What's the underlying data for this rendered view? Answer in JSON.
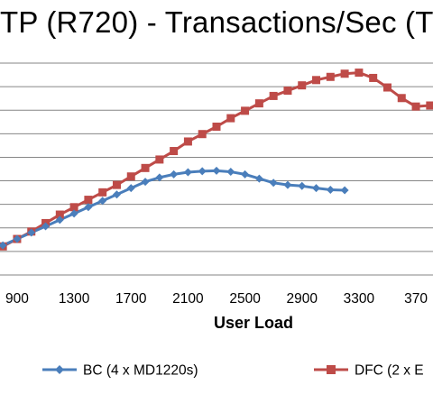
{
  "chart_data": {
    "type": "line",
    "title": "TP (R720) - Transactions/Sec (T",
    "xlabel": "User Load",
    "ylabel": "",
    "x_ticks": [
      "900",
      "1300",
      "1700",
      "2100",
      "2500",
      "2900",
      "3300",
      "370"
    ],
    "x_range": [
      780,
      3820
    ],
    "y_range": [
      0,
      10
    ],
    "grid": true,
    "legend_position": "bottom",
    "colors": {
      "BC": "#4a7ebb",
      "DFC": "#be4b48",
      "grid": "#868686"
    },
    "series": [
      {
        "name": "BC (4 x MD1220s)",
        "x": [
          800,
          900,
          1000,
          1100,
          1200,
          1300,
          1400,
          1500,
          1600,
          1700,
          1800,
          1900,
          2000,
          2100,
          2200,
          2300,
          2400,
          2500,
          2600,
          2700,
          2800,
          2900,
          3000,
          3100,
          3200
        ],
        "y": [
          1.4,
          1.7,
          2.0,
          2.3,
          2.6,
          2.9,
          3.2,
          3.5,
          3.8,
          4.1,
          4.4,
          4.6,
          4.75,
          4.85,
          4.9,
          4.92,
          4.87,
          4.75,
          4.55,
          4.35,
          4.25,
          4.2,
          4.1,
          4.02,
          4.0
        ]
      },
      {
        "name": "DFC (2 x E",
        "x": [
          800,
          900,
          1000,
          1100,
          1200,
          1300,
          1400,
          1500,
          1600,
          1700,
          1800,
          1900,
          2000,
          2100,
          2200,
          2300,
          2400,
          2500,
          2600,
          2700,
          2800,
          2900,
          3000,
          3100,
          3200,
          3300,
          3400,
          3500,
          3600,
          3700,
          3800
        ],
        "y": [
          1.35,
          1.7,
          2.05,
          2.45,
          2.85,
          3.2,
          3.55,
          3.9,
          4.25,
          4.65,
          5.05,
          5.45,
          5.85,
          6.3,
          6.65,
          7.0,
          7.4,
          7.75,
          8.1,
          8.45,
          8.7,
          8.95,
          9.2,
          9.35,
          9.5,
          9.55,
          9.3,
          8.85,
          8.35,
          7.95,
          8.0
        ]
      }
    ]
  }
}
